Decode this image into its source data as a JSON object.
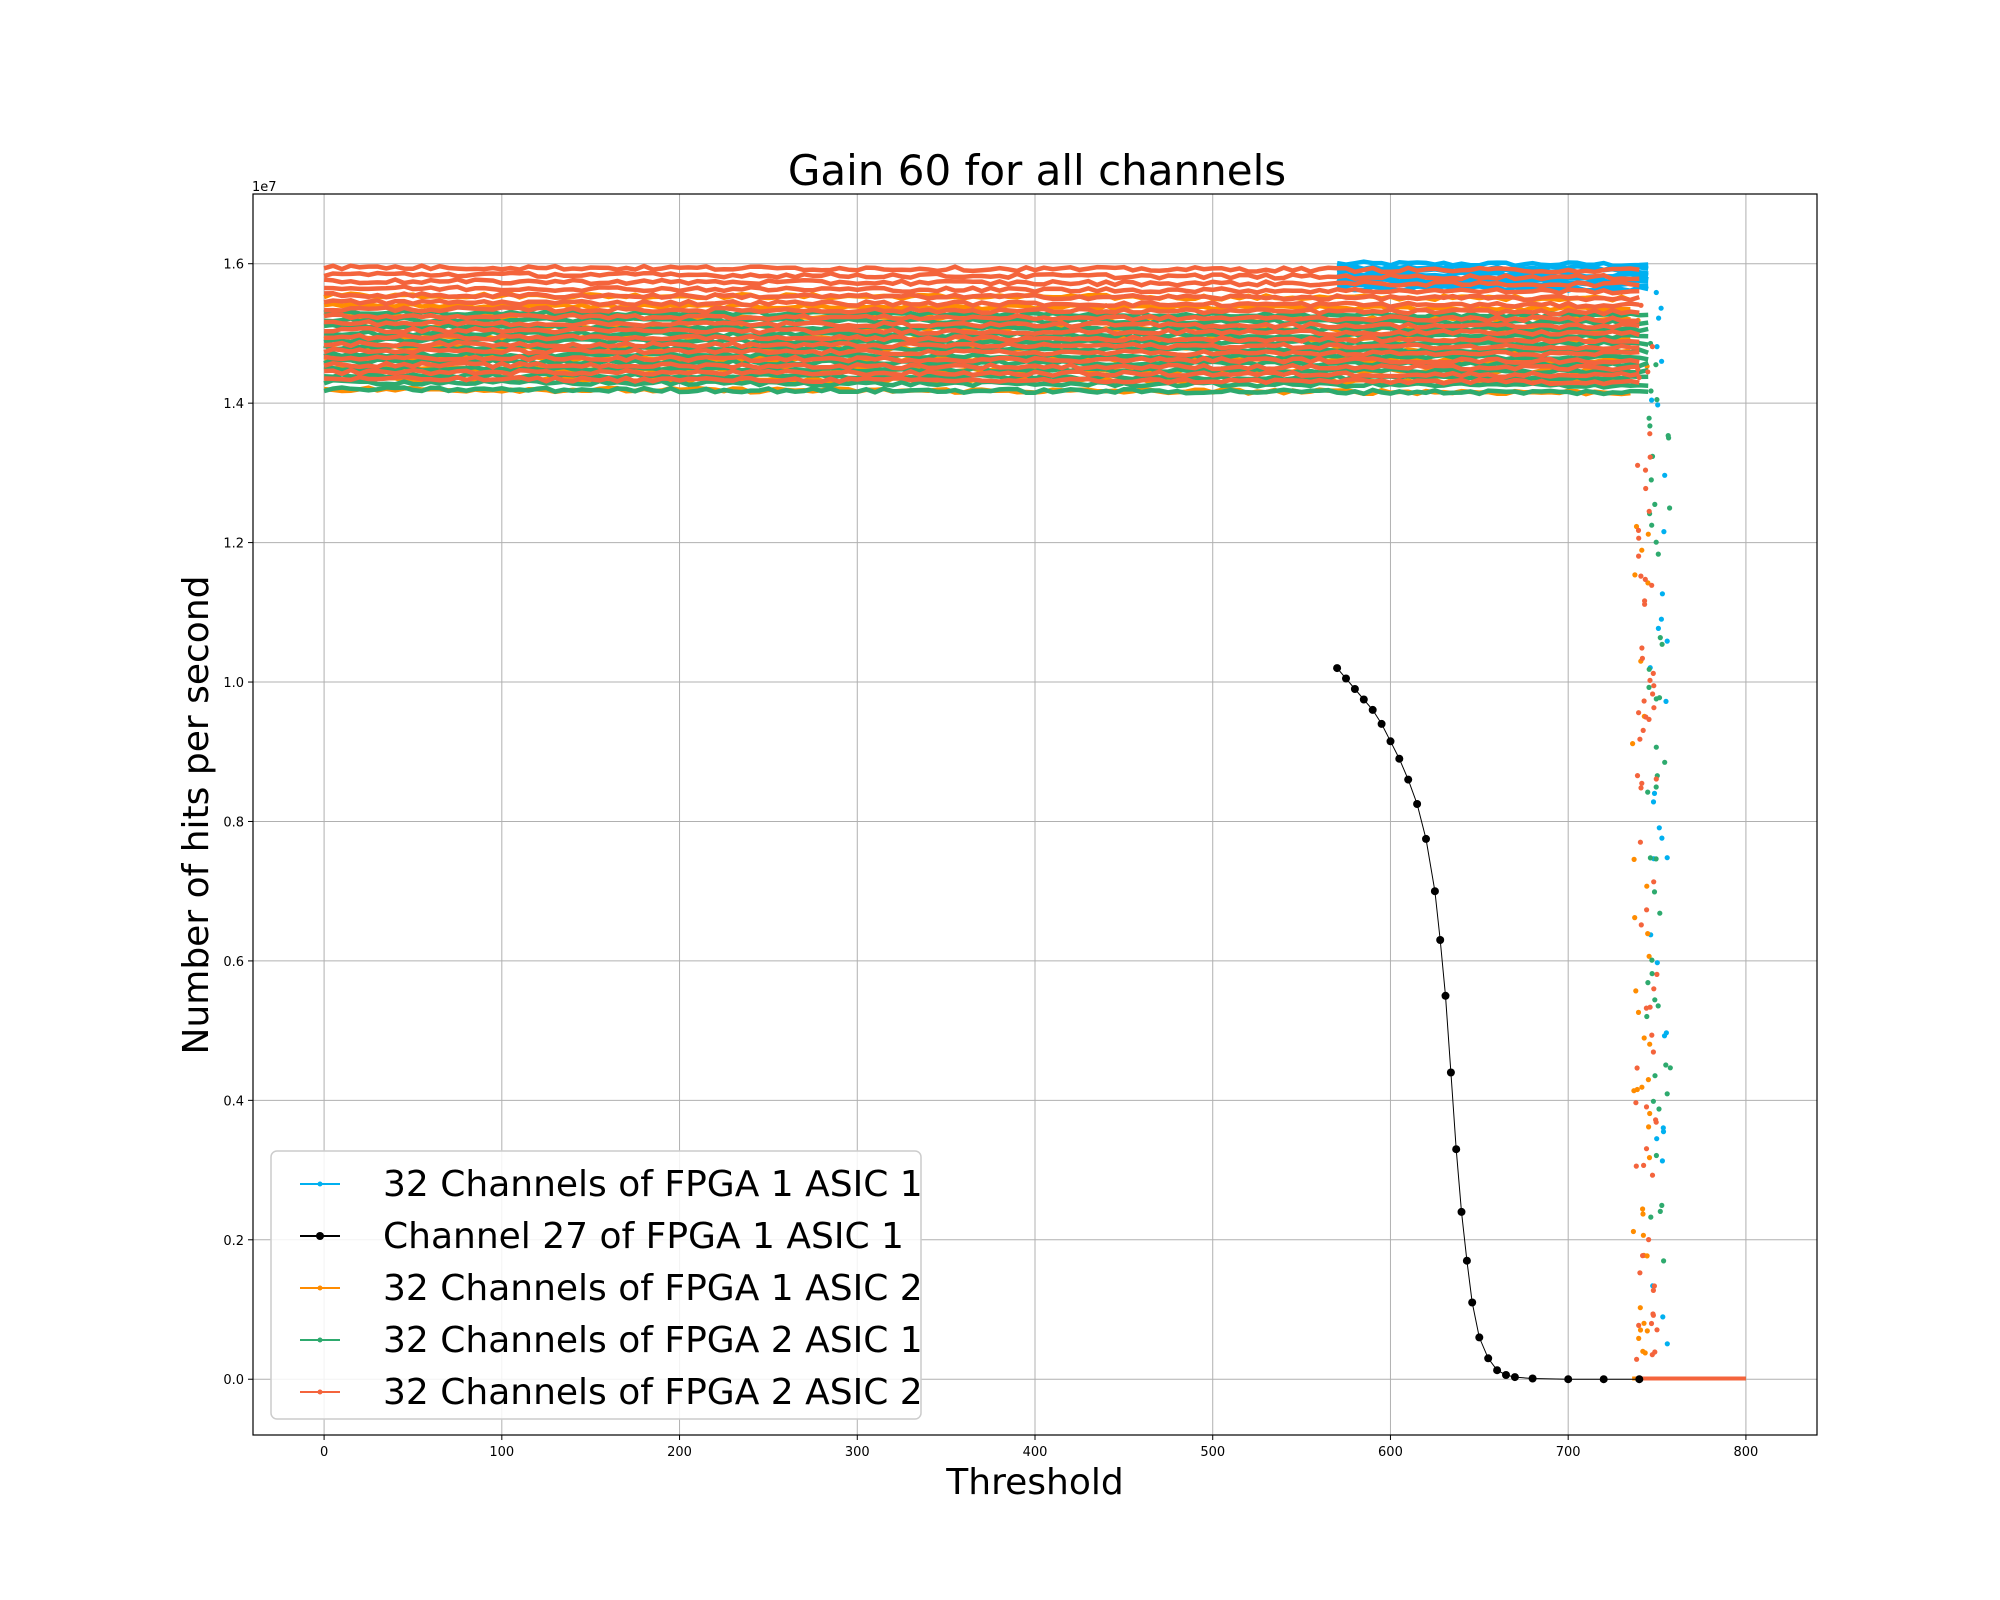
{
  "chart_data": {
    "type": "scatter",
    "title": "Gain 60 for all channels",
    "xlabel": "Threshold",
    "ylabel": "Number of hits per second",
    "y_offset_label": "1e7",
    "y_scale": 10000000,
    "xlim": [
      -40,
      840
    ],
    "ylim": [
      -0.08,
      1.7
    ],
    "x_ticks": [
      0,
      100,
      200,
      300,
      400,
      500,
      600,
      700,
      800
    ],
    "y_ticks": [
      0.0,
      0.2,
      0.4,
      0.6,
      0.8,
      1.0,
      1.2,
      1.4,
      1.6
    ],
    "y_tick_labels": [
      "0.0",
      "0.2",
      "0.4",
      "0.6",
      "0.8",
      "1.0",
      "1.2",
      "1.4",
      "1.6"
    ],
    "grid": true,
    "legend_position": "lower-left",
    "series": [
      {
        "name": "32 Channels of FPGA 1 ASIC 1",
        "color": "#00b0f0",
        "kind": "channel-band",
        "x_start": 570,
        "x_end": 745,
        "channel_levels": [
          1.6,
          1.595,
          1.59,
          1.585,
          1.58,
          1.575,
          1.57,
          1.565
        ],
        "dropout": {
          "x_range": [
            746,
            756
          ],
          "end_x": 800
        }
      },
      {
        "name": "Channel 27 of FPGA 1 ASIC 1",
        "color": "#000000",
        "kind": "curve",
        "x": [
          570,
          575,
          580,
          585,
          590,
          595,
          600,
          605,
          610,
          615,
          620,
          625,
          628,
          631,
          634,
          637,
          640,
          643,
          646,
          650,
          655,
          660,
          665,
          670,
          680,
          700,
          720,
          740
        ],
        "y": [
          1.02,
          1.005,
          0.99,
          0.975,
          0.96,
          0.94,
          0.915,
          0.89,
          0.86,
          0.825,
          0.775,
          0.7,
          0.63,
          0.55,
          0.44,
          0.33,
          0.24,
          0.17,
          0.11,
          0.06,
          0.03,
          0.013,
          0.006,
          0.003,
          0.001,
          0.0,
          0.0,
          0.0
        ]
      },
      {
        "name": "32 Channels of FPGA 1 ASIC 2",
        "color": "#ff8c00",
        "kind": "channel-band",
        "x_start": 0,
        "x_end": 735,
        "channel_levels": [
          1.555,
          1.54,
          1.525,
          1.51,
          1.495,
          1.48,
          1.465,
          1.45,
          1.435,
          1.42
        ],
        "dropout": {
          "x_range": [
            736,
            746
          ],
          "end_x": 800
        }
      },
      {
        "name": "32 Channels of FPGA 2 ASIC 1",
        "color": "#2eaa6e",
        "kind": "channel-band",
        "x_start": 0,
        "x_end": 745,
        "channel_levels": [
          1.53,
          1.52,
          1.51,
          1.5,
          1.49,
          1.48,
          1.47,
          1.46,
          1.45,
          1.44,
          1.43,
          1.42
        ],
        "dropout": {
          "x_range": [
            744,
            758
          ],
          "end_x": 800
        }
      },
      {
        "name": "32 Channels of FPGA 2 ASIC 2",
        "color": "#f4643c",
        "kind": "channel-band",
        "x_start": 0,
        "x_end": 740,
        "channel_levels": [
          1.595,
          1.585,
          1.575,
          1.565,
          1.555,
          1.545,
          1.535,
          1.525,
          1.515,
          1.505,
          1.495,
          1.485,
          1.475,
          1.465,
          1.455,
          1.445,
          1.435
        ],
        "dropout": {
          "x_range": [
            738,
            750
          ],
          "end_x": 800
        }
      }
    ]
  }
}
